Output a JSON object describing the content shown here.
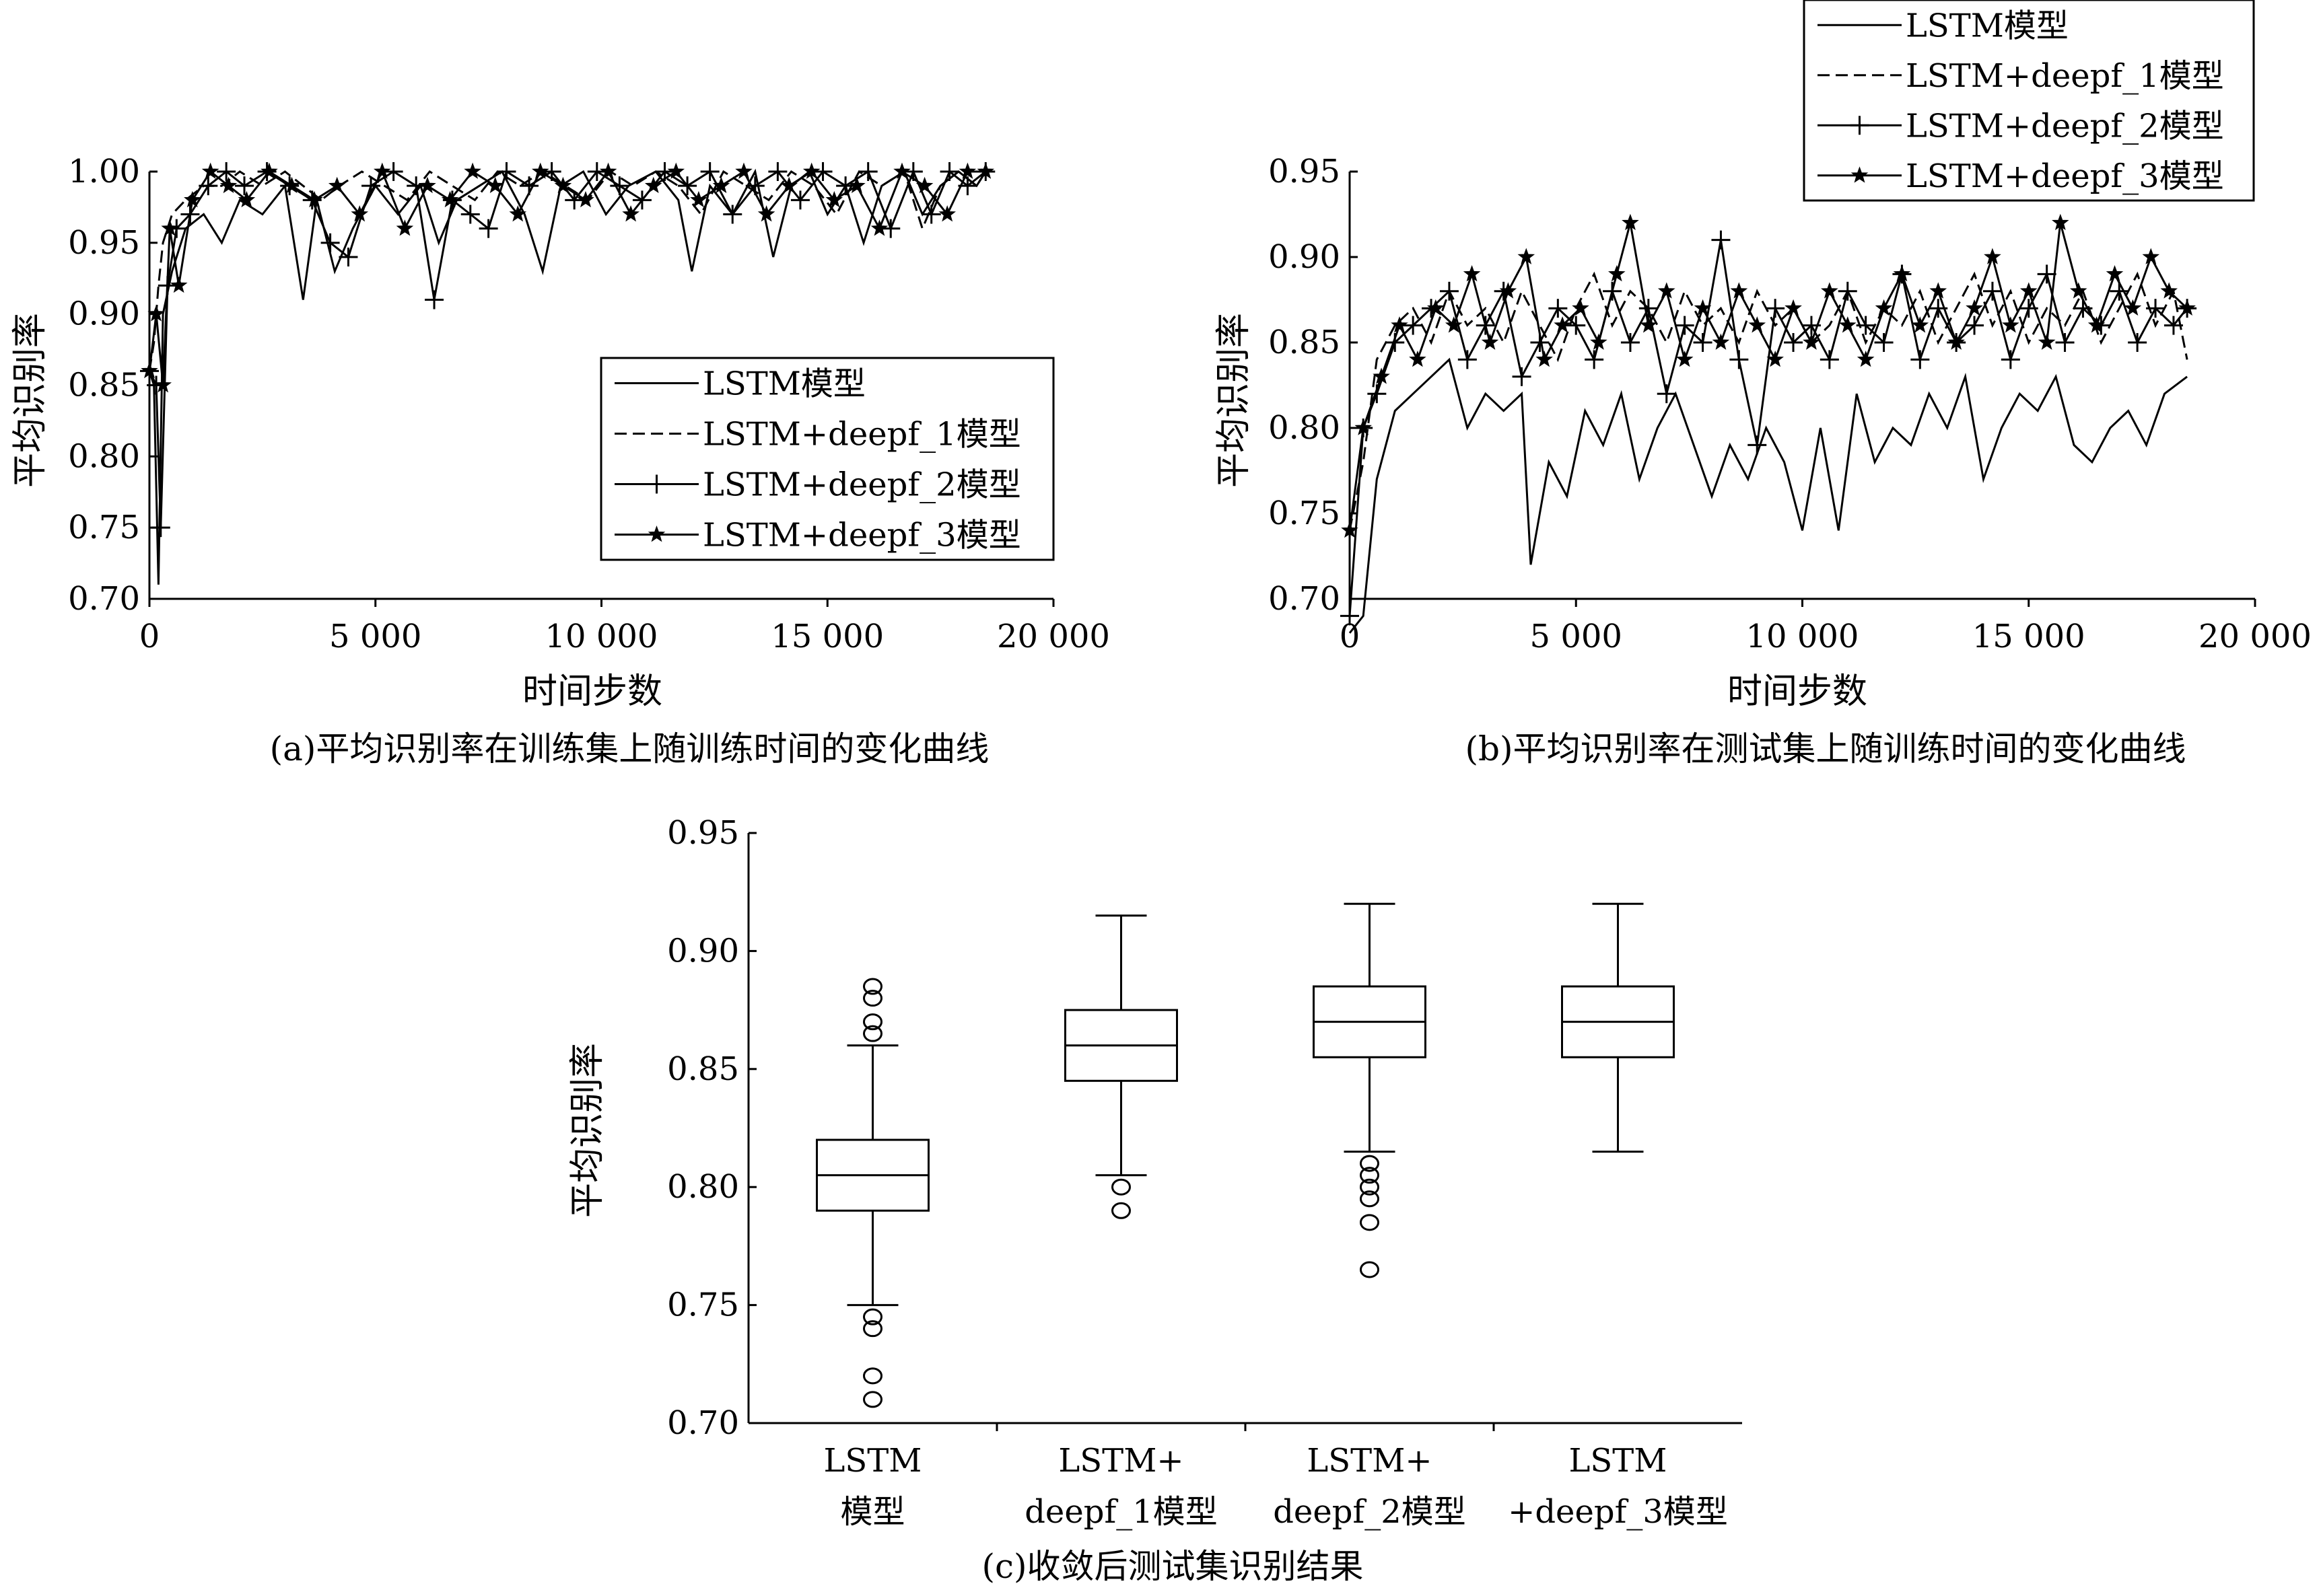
{
  "chart_data": [
    {
      "id": "a",
      "type": "line",
      "caption": "(a)平均识别率在训练集上随训练时间的变化曲线",
      "xlabel": "时间步数",
      "ylabel": "平均识别率",
      "xlim": [
        0,
        20000
      ],
      "ylim": [
        0.7,
        1.0
      ],
      "xticks": [
        0,
        5000,
        10000,
        15000,
        20000
      ],
      "xtick_labels": [
        "0",
        "5 000",
        "10 000",
        "15 000",
        "20 000"
      ],
      "yticks": [
        0.7,
        0.75,
        0.8,
        0.85,
        0.9,
        0.95,
        1.0
      ],
      "ytick_labels": [
        "0.70",
        "0.75",
        "0.80",
        "0.85",
        "0.90",
        "0.95",
        "1.00"
      ],
      "legend": {
        "position": "right-middle",
        "entries": [
          "LSTM模型",
          "LSTM+deepf_1模型",
          "LSTM+deepf_2模型",
          "LSTM+deepf_3模型"
        ]
      },
      "grid": false,
      "series": [
        {
          "name": "LSTM模型",
          "style": "solid",
          "x": [
            0,
            100,
            200,
            300,
            500,
            800,
            1200,
            1600,
            2000,
            2500,
            3000,
            3400,
            3700,
            4100,
            4500,
            5000,
            5500,
            6000,
            6400,
            6800,
            7300,
            7800,
            8300,
            8700,
            9100,
            9600,
            10100,
            10600,
            11200,
            11700,
            12000,
            12400,
            12900,
            13400,
            13800,
            14200,
            14600,
            15000,
            15400,
            15800,
            16200,
            16700,
            17100,
            17500,
            17900,
            18300,
            18500
          ],
          "values": [
            0.86,
            0.85,
            0.71,
            0.9,
            0.93,
            0.96,
            0.97,
            0.95,
            0.98,
            0.97,
            0.99,
            0.91,
            0.98,
            0.93,
            0.96,
            0.99,
            0.97,
            0.99,
            0.95,
            0.98,
            0.99,
            1.0,
            0.97,
            0.93,
            0.99,
            1.0,
            0.97,
            0.99,
            1.0,
            0.98,
            0.93,
            0.99,
            0.97,
            1.0,
            0.94,
            0.99,
            1.0,
            0.97,
            0.99,
            0.95,
            0.99,
            1.0,
            0.97,
            0.99,
            1.0,
            0.99,
            1.0
          ]
        },
        {
          "name": "LSTM+deepf_1模型",
          "style": "dashed",
          "x": [
            0,
            100,
            200,
            300,
            500,
            800,
            1200,
            1600,
            2000,
            2500,
            3000,
            3400,
            3800,
            4200,
            4700,
            5200,
            5700,
            6200,
            6700,
            7200,
            7700,
            8200,
            8700,
            9200,
            9700,
            10200,
            10700,
            11200,
            11700,
            12200,
            12700,
            13200,
            13700,
            14200,
            14700,
            15200,
            15700,
            16200,
            16700,
            17100,
            17500,
            17900,
            18300,
            18500
          ],
          "values": [
            0.86,
            0.88,
            0.92,
            0.95,
            0.97,
            0.98,
            0.99,
            0.99,
            1.0,
            0.99,
            1.0,
            0.99,
            0.98,
            0.99,
            1.0,
            0.99,
            0.98,
            1.0,
            0.99,
            0.98,
            1.0,
            0.99,
            1.0,
            0.99,
            0.98,
            1.0,
            0.99,
            1.0,
            0.99,
            0.97,
            1.0,
            0.99,
            0.98,
            1.0,
            0.99,
            0.97,
            1.0,
            0.99,
            1.0,
            0.96,
            0.99,
            1.0,
            0.99,
            1.0
          ]
        },
        {
          "name": "LSTM+deepf_2模型",
          "style": "solid-plus",
          "x": [
            0,
            150,
            250,
            400,
            600,
            900,
            1300,
            1700,
            2100,
            2600,
            3100,
            3600,
            4000,
            4400,
            4900,
            5400,
            5900,
            6300,
            6700,
            7100,
            7500,
            7900,
            8400,
            8900,
            9400,
            9900,
            10400,
            10900,
            11400,
            11900,
            12400,
            12900,
            13400,
            13900,
            14400,
            14900,
            15400,
            15900,
            16400,
            16900,
            17300,
            17700,
            18100,
            18500
          ],
          "values": [
            0.86,
            0.85,
            0.75,
            0.92,
            0.96,
            0.97,
            0.99,
            1.0,
            0.99,
            1.0,
            0.99,
            0.98,
            0.95,
            0.94,
            0.99,
            1.0,
            0.99,
            0.91,
            0.98,
            0.97,
            0.96,
            1.0,
            0.99,
            1.0,
            0.98,
            1.0,
            0.99,
            0.98,
            1.0,
            0.99,
            1.0,
            0.97,
            0.99,
            1.0,
            0.98,
            1.0,
            0.99,
            1.0,
            0.96,
            1.0,
            0.97,
            1.0,
            0.99,
            1.0
          ]
        },
        {
          "name": "LSTM+deepf_3模型",
          "style": "solid-star",
          "x": [
            0,
            150,
            300,
            450,
            650,
            950,
            1350,
            1750,
            2150,
            2650,
            3150,
            3650,
            4150,
            4650,
            5150,
            5650,
            6150,
            6650,
            7150,
            7650,
            8150,
            8650,
            9150,
            9650,
            10150,
            10650,
            11150,
            11650,
            12150,
            12650,
            13150,
            13650,
            14150,
            14650,
            15150,
            15650,
            16150,
            16650,
            17150,
            17650,
            18100,
            18500
          ],
          "values": [
            0.86,
            0.9,
            0.85,
            0.96,
            0.92,
            0.98,
            1.0,
            0.99,
            0.98,
            1.0,
            0.99,
            0.98,
            0.99,
            0.97,
            1.0,
            0.96,
            0.99,
            0.98,
            1.0,
            0.99,
            0.97,
            1.0,
            0.99,
            0.98,
            1.0,
            0.97,
            0.99,
            1.0,
            0.98,
            0.99,
            1.0,
            0.97,
            0.99,
            1.0,
            0.98,
            0.99,
            0.96,
            1.0,
            0.99,
            0.97,
            1.0,
            1.0
          ]
        }
      ]
    },
    {
      "id": "b",
      "type": "line",
      "caption": "(b)平均识别率在测试集上随训练时间的变化曲线",
      "xlabel": "时间步数",
      "ylabel": "平均识别率",
      "xlim": [
        0,
        20000
      ],
      "ylim": [
        0.7,
        0.95
      ],
      "xticks": [
        0,
        5000,
        10000,
        15000,
        20000
      ],
      "xtick_labels": [
        "0",
        "5 000",
        "10 000",
        "15 000",
        "20 000"
      ],
      "yticks": [
        0.7,
        0.75,
        0.8,
        0.85,
        0.9,
        0.95
      ],
      "ytick_labels": [
        "0.70",
        "0.75",
        "0.80",
        "0.85",
        "0.90",
        "0.95"
      ],
      "legend": {
        "position": "top-right",
        "entries": [
          "LSTM模型",
          "LSTM+deepf_1模型",
          "LSTM+deepf_2模型",
          "LSTM+deepf_3模型"
        ]
      },
      "grid": false,
      "series": [
        {
          "name": "LSTM模型",
          "style": "solid",
          "x": [
            0,
            300,
            600,
            1000,
            1400,
            1800,
            2200,
            2600,
            3000,
            3400,
            3800,
            4000,
            4400,
            4800,
            5200,
            5600,
            6000,
            6400,
            6800,
            7200,
            7600,
            8000,
            8400,
            8800,
            9200,
            9600,
            10000,
            10400,
            10800,
            11200,
            11600,
            12000,
            12400,
            12800,
            13200,
            13600,
            14000,
            14400,
            14800,
            15200,
            15600,
            16000,
            16400,
            16800,
            17200,
            17600,
            18000,
            18500
          ],
          "values": [
            0.68,
            0.69,
            0.77,
            0.81,
            0.82,
            0.83,
            0.84,
            0.8,
            0.82,
            0.81,
            0.82,
            0.72,
            0.78,
            0.76,
            0.81,
            0.79,
            0.82,
            0.77,
            0.8,
            0.82,
            0.79,
            0.76,
            0.79,
            0.77,
            0.8,
            0.78,
            0.74,
            0.8,
            0.74,
            0.82,
            0.78,
            0.8,
            0.79,
            0.82,
            0.8,
            0.83,
            0.77,
            0.8,
            0.82,
            0.81,
            0.83,
            0.79,
            0.78,
            0.8,
            0.81,
            0.79,
            0.82,
            0.83
          ]
        },
        {
          "name": "LSTM+deepf_1模型",
          "style": "dashed",
          "x": [
            0,
            300,
            600,
            1000,
            1400,
            1800,
            2200,
            2600,
            3000,
            3400,
            3800,
            4200,
            4600,
            5000,
            5400,
            5800,
            6200,
            6600,
            7000,
            7400,
            7800,
            8200,
            8600,
            9000,
            9400,
            9800,
            10200,
            10600,
            11000,
            11400,
            11800,
            12200,
            12600,
            13000,
            13400,
            13800,
            14200,
            14600,
            15000,
            15400,
            15800,
            16200,
            16600,
            17000,
            17400,
            17800,
            18200,
            18500
          ],
          "values": [
            0.74,
            0.78,
            0.84,
            0.86,
            0.87,
            0.85,
            0.88,
            0.86,
            0.87,
            0.85,
            0.88,
            0.86,
            0.84,
            0.87,
            0.89,
            0.86,
            0.88,
            0.87,
            0.85,
            0.88,
            0.86,
            0.87,
            0.85,
            0.88,
            0.86,
            0.87,
            0.85,
            0.86,
            0.88,
            0.85,
            0.87,
            0.86,
            0.88,
            0.85,
            0.87,
            0.89,
            0.86,
            0.88,
            0.85,
            0.87,
            0.86,
            0.88,
            0.85,
            0.87,
            0.89,
            0.86,
            0.88,
            0.84
          ]
        },
        {
          "name": "LSTM+deepf_2模型",
          "style": "solid-plus",
          "x": [
            0,
            300,
            600,
            1000,
            1400,
            1800,
            2200,
            2600,
            3000,
            3400,
            3800,
            4200,
            4600,
            5000,
            5400,
            5800,
            6200,
            6600,
            7000,
            7400,
            7800,
            8200,
            8600,
            9000,
            9400,
            9800,
            10200,
            10600,
            11000,
            11400,
            11800,
            12200,
            12600,
            13000,
            13400,
            13800,
            14200,
            14600,
            15000,
            15400,
            15800,
            16200,
            16600,
            17000,
            17400,
            17800,
            18200,
            18500
          ],
          "values": [
            0.69,
            0.8,
            0.82,
            0.85,
            0.86,
            0.87,
            0.88,
            0.84,
            0.86,
            0.88,
            0.83,
            0.85,
            0.87,
            0.86,
            0.84,
            0.88,
            0.85,
            0.87,
            0.82,
            0.86,
            0.85,
            0.91,
            0.84,
            0.79,
            0.87,
            0.85,
            0.86,
            0.84,
            0.88,
            0.86,
            0.85,
            0.89,
            0.84,
            0.87,
            0.85,
            0.86,
            0.88,
            0.84,
            0.87,
            0.89,
            0.85,
            0.87,
            0.86,
            0.88,
            0.85,
            0.87,
            0.86,
            0.87
          ]
        },
        {
          "name": "LSTM+deepf_3模型",
          "style": "solid-star",
          "x": [
            0,
            300,
            700,
            1100,
            1500,
            1900,
            2300,
            2700,
            3100,
            3500,
            3900,
            4300,
            4700,
            5100,
            5500,
            5900,
            6200,
            6600,
            7000,
            7400,
            7800,
            8200,
            8600,
            9000,
            9400,
            9800,
            10200,
            10600,
            11000,
            11400,
            11800,
            12200,
            12600,
            13000,
            13400,
            13800,
            14200,
            14600,
            15000,
            15400,
            15700,
            16100,
            16500,
            16900,
            17300,
            17700,
            18100,
            18500
          ],
          "values": [
            0.74,
            0.8,
            0.83,
            0.86,
            0.84,
            0.87,
            0.86,
            0.89,
            0.85,
            0.88,
            0.9,
            0.84,
            0.86,
            0.87,
            0.85,
            0.89,
            0.92,
            0.86,
            0.88,
            0.84,
            0.87,
            0.85,
            0.88,
            0.86,
            0.84,
            0.87,
            0.85,
            0.88,
            0.86,
            0.84,
            0.87,
            0.89,
            0.86,
            0.88,
            0.85,
            0.87,
            0.9,
            0.86,
            0.88,
            0.85,
            0.92,
            0.88,
            0.86,
            0.89,
            0.87,
            0.9,
            0.88,
            0.87
          ]
        }
      ]
    },
    {
      "id": "c",
      "type": "box",
      "caption": "(c)收敛后测试集识别结果",
      "ylabel": "平均识别率",
      "ylim": [
        0.7,
        0.95
      ],
      "yticks": [
        0.7,
        0.75,
        0.8,
        0.85,
        0.9,
        0.95
      ],
      "ytick_labels": [
        "0.70",
        "0.75",
        "0.80",
        "0.85",
        "0.90",
        "0.95"
      ],
      "categories": [
        [
          "LSTM",
          "模型"
        ],
        [
          "LSTM+",
          "deepf_1模型"
        ],
        [
          "LSTM+",
          "deepf_2模型"
        ],
        [
          "LSTM",
          "+deepf_3模型"
        ]
      ],
      "boxes": [
        {
          "whisker_low": 0.75,
          "q1": 0.79,
          "median": 0.805,
          "q3": 0.82,
          "whisker_high": 0.86,
          "outliers": [
            0.885,
            0.88,
            0.87,
            0.865,
            0.745,
            0.74,
            0.72,
            0.71
          ]
        },
        {
          "whisker_low": 0.805,
          "q1": 0.845,
          "median": 0.86,
          "q3": 0.875,
          "whisker_high": 0.915,
          "outliers": [
            0.8,
            0.79
          ]
        },
        {
          "whisker_low": 0.815,
          "q1": 0.855,
          "median": 0.87,
          "q3": 0.885,
          "whisker_high": 0.92,
          "outliers": [
            0.81,
            0.805,
            0.8,
            0.795,
            0.785,
            0.765
          ]
        },
        {
          "whisker_low": 0.815,
          "q1": 0.855,
          "median": 0.87,
          "q3": 0.885,
          "whisker_high": 0.92,
          "outliers": []
        }
      ]
    }
  ]
}
